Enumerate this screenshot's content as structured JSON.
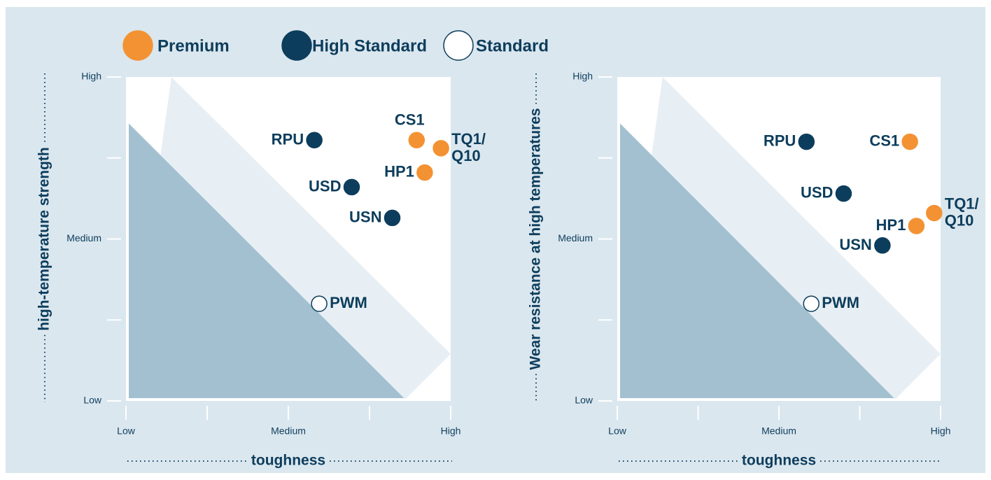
{
  "legend": [
    {
      "name": "Premium",
      "color": "#f39233",
      "stroke": "#f39233"
    },
    {
      "name": "High Standard",
      "color": "#0d3d5c",
      "stroke": "#0d3d5c"
    },
    {
      "name": "Standard",
      "color": "#ffffff",
      "stroke": "#0d3d5c"
    }
  ],
  "chart_data": [
    {
      "type": "scatter",
      "xlabel": "toughness",
      "ylabel": "high-temperature strength",
      "xlim": [
        0,
        2
      ],
      "ylim": [
        0,
        2
      ],
      "xticks": [
        {
          "value": 0,
          "label": "Low"
        },
        {
          "value": 1,
          "label": "Medium"
        },
        {
          "value": 2,
          "label": "High"
        }
      ],
      "yticks": [
        {
          "value": 0,
          "label": "Low"
        },
        {
          "value": 1,
          "label": "Medium"
        },
        {
          "value": 2,
          "label": "High"
        }
      ],
      "minor_xticks": [
        0.5,
        1.5
      ],
      "minor_yticks": [
        0.5,
        1.5
      ],
      "series": [
        {
          "labels": [
            [
              "CS1"
            ],
            [
              "TQ1/",
              "Q10"
            ],
            [
              "HP1"
            ]
          ],
          "x": [
            1.79,
            1.94,
            1.84
          ],
          "values": [
            1.61,
            1.56,
            1.41
          ]
        },
        {
          "labels": [
            [
              "RPU"
            ],
            [
              "USD"
            ],
            [
              "USN"
            ]
          ],
          "x": [
            1.16,
            1.39,
            1.64
          ],
          "values": [
            1.61,
            1.32,
            1.13
          ]
        },
        {
          "labels": [
            [
              "PWM"
            ]
          ],
          "x": [
            1.19
          ],
          "values": [
            0.6
          ]
        }
      ]
    },
    {
      "type": "scatter",
      "xlabel": "toughness",
      "ylabel": "Wear resistance at high temperatures",
      "xlim": [
        0,
        2
      ],
      "ylim": [
        0,
        2
      ],
      "xticks": [
        {
          "value": 0,
          "label": "Low"
        },
        {
          "value": 1,
          "label": "Medium"
        },
        {
          "value": 2,
          "label": "High"
        }
      ],
      "yticks": [
        {
          "value": 0,
          "label": "Low"
        },
        {
          "value": 1,
          "label": "Medium"
        },
        {
          "value": 2,
          "label": "High"
        }
      ],
      "minor_xticks": [
        0.5,
        1.5
      ],
      "minor_yticks": [
        0.5,
        1.5
      ],
      "series": [
        {
          "labels": [
            [
              "CS1"
            ],
            [
              "TQ1/",
              "Q10"
            ],
            [
              "HP1"
            ]
          ],
          "x": [
            1.81,
            1.96,
            1.85
          ],
          "values": [
            1.6,
            1.16,
            1.08
          ]
        },
        {
          "labels": [
            [
              "RPU"
            ],
            [
              "USD"
            ],
            [
              "USN"
            ]
          ],
          "x": [
            1.17,
            1.4,
            1.64
          ],
          "values": [
            1.6,
            1.28,
            0.96
          ]
        },
        {
          "labels": [
            [
              "PWM"
            ]
          ],
          "x": [
            1.2
          ],
          "values": [
            0.6
          ]
        }
      ]
    }
  ]
}
